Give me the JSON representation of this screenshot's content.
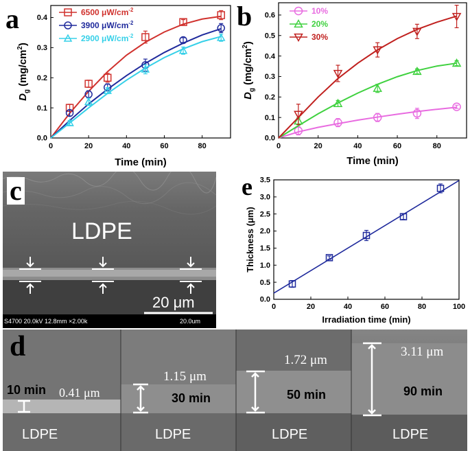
{
  "panels": {
    "a": "a",
    "b": "b",
    "c": "c",
    "d": "d",
    "e": "e"
  },
  "chart_data": [
    {
      "id": "a",
      "type": "line",
      "xlabel": "Time (min)",
      "ylabel": "D",
      "ylabel_sub": "g",
      "ylabel_unit": " (mg/cm",
      "ylabel_sup": "2",
      "ylabel_end": ")",
      "xlim": [
        0,
        95
      ],
      "ylim": [
        0,
        0.44
      ],
      "xticks": [
        0,
        20,
        40,
        60,
        80
      ],
      "yticks": [
        0.0,
        0.1,
        0.2,
        0.3,
        0.4
      ],
      "legend_position": "top-left",
      "series": [
        {
          "name": "6500 μW/cm",
          "sup": "-2",
          "color": "#d0312d",
          "marker": "square",
          "x": [
            0,
            10,
            20,
            30,
            50,
            70,
            90
          ],
          "y": [
            0,
            0.1,
            0.18,
            0.2,
            0.335,
            0.385,
            0.408
          ],
          "err": [
            0,
            0.012,
            0.012,
            0.015,
            0.02,
            0.008,
            0.015
          ],
          "fit": [
            [
              0,
              0
            ],
            [
              10,
              0.082
            ],
            [
              20,
              0.155
            ],
            [
              30,
              0.22
            ],
            [
              40,
              0.275
            ],
            [
              50,
              0.318
            ],
            [
              60,
              0.352
            ],
            [
              70,
              0.378
            ],
            [
              80,
              0.395
            ],
            [
              90,
              0.404
            ]
          ]
        },
        {
          "name": "3900 μW/cm",
          "sup": "-2",
          "color": "#1f2a9c",
          "marker": "circle",
          "x": [
            0,
            10,
            20,
            30,
            50,
            70,
            90
          ],
          "y": [
            0,
            0.083,
            0.145,
            0.168,
            0.242,
            0.325,
            0.365
          ],
          "err": [
            0,
            0.01,
            0.012,
            0.012,
            0.02,
            0.008,
            0.015
          ],
          "fit": [
            [
              0,
              0
            ],
            [
              10,
              0.058
            ],
            [
              20,
              0.113
            ],
            [
              30,
              0.162
            ],
            [
              40,
              0.207
            ],
            [
              50,
              0.248
            ],
            [
              60,
              0.284
            ],
            [
              70,
              0.315
            ],
            [
              80,
              0.342
            ],
            [
              90,
              0.363
            ]
          ]
        },
        {
          "name": "2900 μW/cm",
          "sup": "-2",
          "color": "#36d0e8",
          "marker": "triangle",
          "x": [
            0,
            10,
            20,
            30,
            50,
            70,
            90
          ],
          "y": [
            0,
            0.05,
            0.12,
            0.157,
            0.228,
            0.29,
            0.333
          ],
          "err": [
            0,
            0.008,
            0.012,
            0.01,
            0.015,
            0.012,
            0.012
          ],
          "fit": [
            [
              0,
              0
            ],
            [
              10,
              0.05
            ],
            [
              20,
              0.1
            ],
            [
              30,
              0.148
            ],
            [
              40,
              0.192
            ],
            [
              50,
              0.232
            ],
            [
              60,
              0.267
            ],
            [
              70,
              0.296
            ],
            [
              80,
              0.32
            ],
            [
              90,
              0.337
            ]
          ]
        }
      ]
    },
    {
      "id": "b",
      "type": "line",
      "xlabel": "Time (min)",
      "ylabel": "D",
      "ylabel_sub": "g",
      "ylabel_unit": " (mg/cm",
      "ylabel_sup": "2",
      "ylabel_end": ")",
      "xlim": [
        0,
        95
      ],
      "ylim": [
        0,
        0.66
      ],
      "xticks": [
        0,
        20,
        40,
        60,
        80
      ],
      "yticks": [
        0.0,
        0.1,
        0.2,
        0.3,
        0.4,
        0.5,
        0.6
      ],
      "legend_position": "top-left",
      "series": [
        {
          "name": "10%",
          "color": "#e86be0",
          "marker": "circle",
          "x": [
            0,
            10,
            30,
            50,
            70,
            90
          ],
          "y": [
            0,
            0.035,
            0.075,
            0.1,
            0.12,
            0.152
          ],
          "err": [
            0,
            0.02,
            0.02,
            0.02,
            0.025,
            0.008
          ],
          "fit": [
            [
              0,
              0
            ],
            [
              10,
              0.03
            ],
            [
              20,
              0.052
            ],
            [
              30,
              0.07
            ],
            [
              40,
              0.087
            ],
            [
              50,
              0.102
            ],
            [
              60,
              0.116
            ],
            [
              70,
              0.129
            ],
            [
              80,
              0.14
            ],
            [
              90,
              0.15
            ]
          ]
        },
        {
          "name": "20%",
          "color": "#3fd13f",
          "marker": "triangle",
          "x": [
            0,
            10,
            30,
            50,
            70,
            90
          ],
          "y": [
            0,
            0.083,
            0.168,
            0.242,
            0.325,
            0.365
          ],
          "err": [
            0,
            0.015,
            0.015,
            0.02,
            0.012,
            0.012
          ],
          "fit": [
            [
              0,
              0
            ],
            [
              10,
              0.06
            ],
            [
              20,
              0.118
            ],
            [
              30,
              0.171
            ],
            [
              40,
              0.219
            ],
            [
              50,
              0.262
            ],
            [
              60,
              0.299
            ],
            [
              70,
              0.329
            ],
            [
              80,
              0.351
            ],
            [
              90,
              0.365
            ]
          ]
        },
        {
          "name": "30%",
          "color": "#c0201e",
          "marker": "triangle-down",
          "x": [
            0,
            10,
            30,
            50,
            70,
            90
          ],
          "y": [
            0,
            0.115,
            0.315,
            0.43,
            0.52,
            0.593
          ],
          "err": [
            0,
            0.05,
            0.04,
            0.035,
            0.035,
            0.055
          ],
          "fit": [
            [
              0,
              0
            ],
            [
              10,
              0.1
            ],
            [
              20,
              0.2
            ],
            [
              30,
              0.29
            ],
            [
              40,
              0.365
            ],
            [
              50,
              0.43
            ],
            [
              60,
              0.485
            ],
            [
              70,
              0.53
            ],
            [
              80,
              0.565
            ],
            [
              90,
              0.595
            ]
          ]
        }
      ]
    },
    {
      "id": "e",
      "type": "scatter",
      "xlabel": "Irradiation time (min)",
      "ylabel": "Thickness (μm)",
      "xlim": [
        0,
        100
      ],
      "ylim": [
        0,
        3.5
      ],
      "xticks": [
        0,
        20,
        40,
        60,
        80,
        100
      ],
      "yticks": [
        0.0,
        0.5,
        1.0,
        1.5,
        2.0,
        2.5,
        3.0,
        3.5
      ],
      "series": [
        {
          "name": "thickness",
          "color": "#1f2a9c",
          "marker": "square",
          "x": [
            10,
            30,
            50,
            70,
            90
          ],
          "y": [
            0.45,
            1.22,
            1.87,
            2.42,
            3.25
          ],
          "err": [
            0.1,
            0.05,
            0.15,
            0.08,
            0.13
          ],
          "fit": [
            [
              0,
              0.18
            ],
            [
              100,
              3.48
            ]
          ]
        }
      ]
    }
  ],
  "sem_c": {
    "label": "LDPE",
    "scale_label": "20 μm",
    "info_left": "S4700 20.0kV 12.8mm ×2.00k",
    "info_right": "20.0um"
  },
  "sem_d": [
    {
      "time": "10 min",
      "thickness": "0.41 μm",
      "substrate": "LDPE"
    },
    {
      "time": "30 min",
      "thickness": "1.15 μm",
      "substrate": "LDPE"
    },
    {
      "time": "50 min",
      "thickness": "1.72 μm",
      "substrate": "LDPE"
    },
    {
      "time": "90 min",
      "thickness": "3.11 μm",
      "substrate": "LDPE"
    }
  ]
}
